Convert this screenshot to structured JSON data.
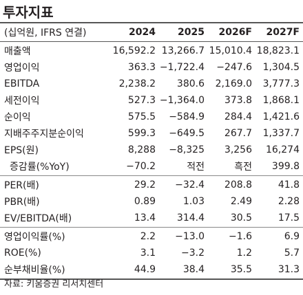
{
  "title": "투자지표",
  "table": {
    "header": [
      "(십억원, IFRS 연결)",
      "2024",
      "2025",
      "2026F",
      "2027F"
    ],
    "groups": [
      [
        [
          "매출액",
          "16,592.2",
          "13,266.7",
          "15,010.4",
          "18,823.1"
        ],
        [
          "영업이익",
          "363.3",
          "−1,722.4",
          "−247.6",
          "1,304.5"
        ],
        [
          "EBITDA",
          "2,238.2",
          "380.6",
          "2,169.0",
          "3,777.3"
        ],
        [
          "세전이익",
          "527.3",
          "−1,364.0",
          "373.8",
          "1,868.1"
        ],
        [
          "순이익",
          "575.5",
          "−584.9",
          "284.4",
          "1,421.6"
        ],
        [
          "지배주주지분순이익",
          "599.3",
          "−649.5",
          "267.7",
          "1,337.7"
        ],
        [
          "EPS(원)",
          "8,288",
          "−8,325",
          "3,256",
          "16,274"
        ],
        [
          "증감률(%YoY)",
          "−70.2",
          "적전",
          "흑전",
          "399.8"
        ]
      ],
      [
        [
          "PER(배)",
          "29.2",
          "−32.4",
          "208.8",
          "41.8"
        ],
        [
          "PBR(배)",
          "0.89",
          "1.03",
          "2.49",
          "2.28"
        ],
        [
          "EV/EBITDA(배)",
          "13.4",
          "314.4",
          "30.5",
          "17.5"
        ]
      ],
      [
        [
          "영업이익률(%)",
          "2.2",
          "−13.0",
          "−1.6",
          "6.9"
        ],
        [
          "ROE(%)",
          "3.1",
          "−3.2",
          "1.2",
          "5.7"
        ],
        [
          "순부채비율(%)",
          "44.9",
          "38.4",
          "35.5",
          "31.3"
        ]
      ]
    ]
  },
  "source": "자료: 키움증권 리서치센터"
}
